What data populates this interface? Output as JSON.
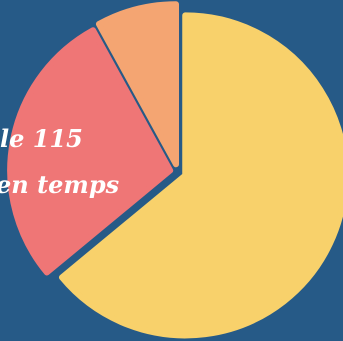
{
  "chart_data": {
    "type": "pie",
    "title": "",
    "slices": [
      {
        "value": 64,
        "color": "#f8d16b"
      },
      {
        "value": 28,
        "color": "#ef7676"
      },
      {
        "value": 8,
        "color": "#f4a572"
      }
    ],
    "annotations": [
      "le 115",
      "en temps"
    ],
    "background": "#265a87"
  }
}
